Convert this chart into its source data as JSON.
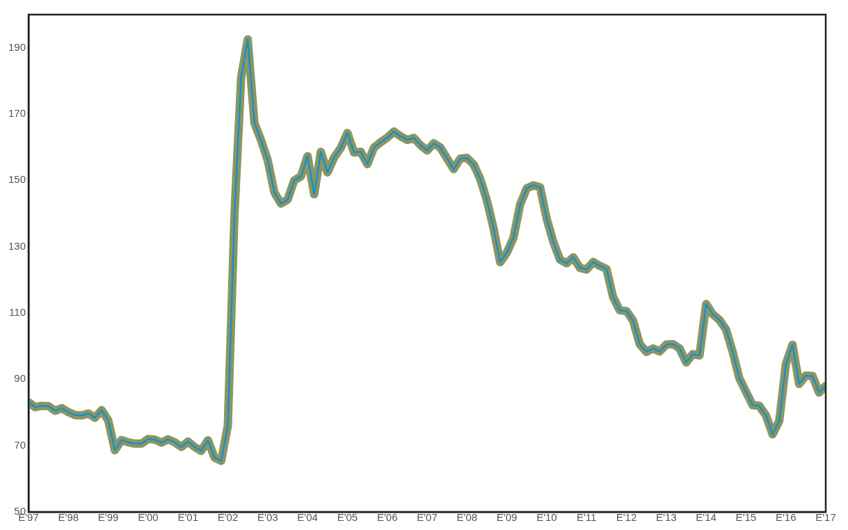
{
  "chart_data": {
    "type": "line",
    "categories": [
      "E'97",
      null,
      null,
      null,
      null,
      null,
      "E'98",
      null,
      null,
      null,
      null,
      null,
      "E'99",
      null,
      null,
      null,
      null,
      null,
      "E'00",
      null,
      null,
      null,
      null,
      null,
      "E'01",
      null,
      null,
      null,
      null,
      null,
      "E'02",
      null,
      null,
      null,
      null,
      null,
      "E'03",
      null,
      null,
      null,
      null,
      null,
      "E'04",
      null,
      null,
      null,
      null,
      null,
      "E'05",
      null,
      null,
      null,
      null,
      null,
      "E'06",
      null,
      null,
      null,
      null,
      null,
      "E'07",
      null,
      null,
      null,
      null,
      null,
      "E'08",
      null,
      null,
      null,
      null,
      null,
      "E'09",
      null,
      null,
      null,
      null,
      null,
      "E'10",
      null,
      null,
      null,
      null,
      null,
      "E'11",
      null,
      null,
      null,
      null,
      null,
      "E'12",
      null,
      null,
      null,
      null,
      null,
      "E'13",
      null,
      null,
      null,
      null,
      null,
      "E'14",
      null,
      null,
      null,
      null,
      null,
      "E'15",
      null,
      null,
      null,
      null,
      null,
      "E'16",
      null,
      null,
      null,
      null,
      null,
      "E'17"
    ],
    "series": [
      {
        "color": "#8a9663",
        "values": [
          83.1,
          81.6,
          82.0,
          81.9,
          80.5,
          81.3,
          80.1,
          79.2,
          79.1,
          79.7,
          78.4,
          80.7,
          77.6,
          68.6,
          71.7,
          71.0,
          70.6,
          70.6,
          72.0,
          71.8,
          70.9,
          71.9,
          71.0,
          69.6,
          71.2,
          69.6,
          68.4,
          71.6,
          66.4,
          65.4,
          76.0,
          139.6,
          181.0,
          192.5,
          167.3,
          162.1,
          156.1,
          146.4,
          143.0,
          144.2,
          150.0,
          151.2,
          157.3,
          145.8,
          158.6,
          152.4,
          156.9,
          159.8,
          164.3,
          158.4,
          158.6,
          154.9,
          159.9,
          161.5,
          162.9,
          164.7,
          163.3,
          162.2,
          162.8,
          160.6,
          159.0,
          161.2,
          159.9,
          156.6,
          153.4,
          156.6,
          156.8,
          154.8,
          150.4,
          143.9,
          135.5,
          125.3,
          128.2,
          132.7,
          142.7,
          147.6,
          148.5,
          147.9,
          138.4,
          131.4,
          126.1,
          125.0,
          126.8,
          123.6,
          123.1,
          125.4,
          124.2,
          123.3,
          114.7,
          110.8,
          110.6,
          107.7,
          100.6,
          98.3,
          99.3,
          98.4,
          100.5,
          100.6,
          99.3,
          95.1,
          97.6,
          97.2,
          112.7,
          109.6,
          107.9,
          105.0,
          98.2,
          90.3,
          86.2,
          82.2,
          82.0,
          79.1,
          73.4,
          77.4,
          94.6,
          100.4,
          88.6,
          91.1,
          91.0,
          86.0,
          88.0
        ]
      },
      {
        "color": "#1a8fc8",
        "values": [
          83.1,
          81.6,
          82.0,
          81.9,
          80.5,
          81.3,
          80.1,
          79.2,
          79.1,
          79.7,
          78.4,
          80.7,
          77.6,
          68.6,
          71.7,
          71.0,
          70.6,
          70.6,
          72.0,
          71.8,
          70.9,
          71.9,
          71.0,
          69.6,
          71.2,
          69.6,
          68.4,
          71.6,
          66.4,
          65.4,
          76.0,
          139.6,
          181.0,
          192.5,
          167.3,
          162.1,
          156.1,
          146.4,
          143.0,
          144.2,
          150.0,
          151.2,
          157.3,
          145.8,
          158.6,
          152.4,
          156.9,
          159.8,
          164.3,
          158.4,
          158.6,
          154.9,
          159.9,
          161.5,
          162.9,
          164.7,
          163.3,
          162.2,
          162.8,
          160.6,
          159.0,
          161.2,
          159.9,
          156.6,
          153.4,
          156.6,
          156.8,
          154.8,
          150.4,
          143.9,
          135.5,
          125.3,
          128.2,
          132.7,
          142.7,
          147.6,
          148.5,
          147.9,
          138.4,
          131.4,
          126.1,
          125.0,
          126.8,
          123.6,
          123.1,
          125.4,
          124.2,
          123.3,
          114.7,
          110.8,
          110.6,
          107.7,
          100.6,
          98.3,
          99.3,
          98.4,
          100.5,
          100.6,
          99.3,
          95.1,
          97.6,
          97.2,
          112.7,
          109.6,
          107.9,
          105.0,
          98.2,
          90.3,
          86.2,
          82.2,
          82.0,
          79.1,
          73.4,
          77.4,
          94.6,
          100.4,
          88.6,
          91.1,
          91.0,
          86.0,
          88.0
        ]
      }
    ],
    "ylim": [
      50,
      200
    ],
    "yticks": [
      50,
      70,
      90,
      110,
      130,
      150,
      170,
      190
    ],
    "grid": false,
    "legend": false,
    "marker": "none",
    "line_style": "solid"
  }
}
